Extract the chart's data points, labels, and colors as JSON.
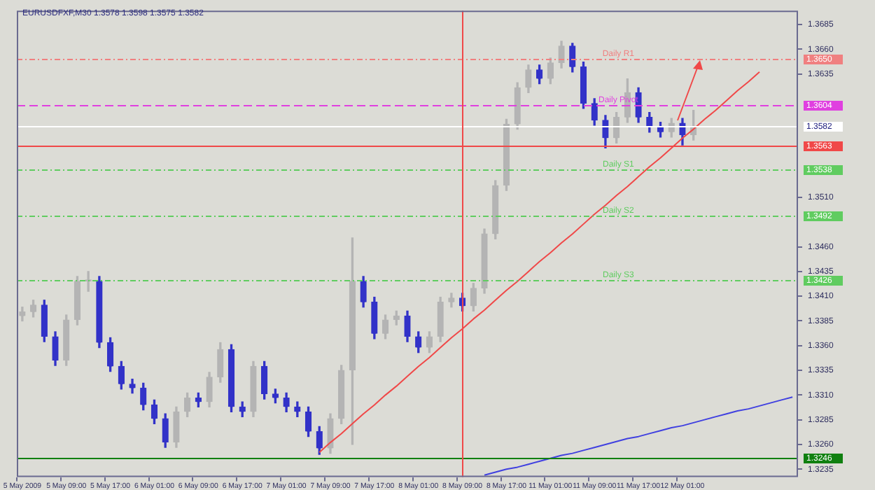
{
  "chart_data": {
    "type": "candlestick",
    "title": "EURUSDFXF,M30 1.3578 1.3598 1.3575 1.3582",
    "marker": "none",
    "categories": [
      "5 May 2009",
      null,
      null,
      null,
      "5 May 09:00",
      null,
      null,
      null,
      "5 May 17:00",
      null,
      null,
      null,
      "6 May 01:00",
      null,
      null,
      null,
      "6 May 09:00",
      null,
      null,
      null,
      "6 May 17:00",
      null,
      null,
      null,
      "7 May 01:00",
      null,
      null,
      null,
      "7 May 09:00",
      null,
      null,
      null,
      "7 May 17:00",
      null,
      null,
      null,
      "8 May 01:00",
      null,
      null,
      null,
      "8 May 09:00",
      null,
      null,
      null,
      "8 May 17:00",
      null,
      null,
      null,
      "11 May 01:00",
      null,
      null,
      null,
      "11 May 09:00",
      null,
      null,
      null,
      "11 May 17:00",
      null,
      null,
      null,
      "12 May 01:00",
      null,
      null,
      null,
      null,
      null,
      null,
      null,
      null,
      null,
      null
    ],
    "ohlc": [
      [
        1.339,
        1.3399,
        1.3385,
        1.3394
      ],
      [
        1.3394,
        1.3406,
        1.3389,
        1.3401
      ],
      [
        1.3401,
        1.3406,
        1.3364,
        1.3369
      ],
      [
        1.3369,
        1.3374,
        1.334,
        1.3345
      ],
      [
        1.3345,
        1.3391,
        1.334,
        1.3386
      ],
      [
        1.3386,
        1.343,
        1.3381,
        1.3425
      ],
      [
        1.3425,
        1.3435,
        1.3415,
        1.3425
      ],
      [
        1.3425,
        1.343,
        1.3358,
        1.3363
      ],
      [
        1.3363,
        1.3368,
        1.3334,
        1.3339
      ],
      [
        1.3339,
        1.3344,
        1.3316,
        1.3321
      ],
      [
        1.3321,
        1.3326,
        1.3312,
        1.3317
      ],
      [
        1.3317,
        1.3322,
        1.3295,
        1.33
      ],
      [
        1.33,
        1.3305,
        1.3281,
        1.3286
      ],
      [
        1.3286,
        1.3291,
        1.3257,
        1.3262
      ],
      [
        1.3262,
        1.3298,
        1.3257,
        1.3293
      ],
      [
        1.3293,
        1.3312,
        1.3288,
        1.3307
      ],
      [
        1.3307,
        1.3312,
        1.3298,
        1.3303
      ],
      [
        1.3303,
        1.3333,
        1.3298,
        1.3328
      ],
      [
        1.3328,
        1.3363,
        1.3323,
        1.3356
      ],
      [
        1.3356,
        1.3361,
        1.3293,
        1.3298
      ],
      [
        1.3298,
        1.3303,
        1.3288,
        1.3293
      ],
      [
        1.3293,
        1.3344,
        1.3288,
        1.3339
      ],
      [
        1.3339,
        1.3344,
        1.3306,
        1.3311
      ],
      [
        1.3311,
        1.3316,
        1.3302,
        1.3307
      ],
      [
        1.3307,
        1.3312,
        1.3293,
        1.3298
      ],
      [
        1.3298,
        1.3303,
        1.3288,
        1.3293
      ],
      [
        1.3293,
        1.3298,
        1.3268,
        1.3273
      ],
      [
        1.3273,
        1.3278,
        1.325,
        1.3256
      ],
      [
        1.3256,
        1.3291,
        1.3251,
        1.3286
      ],
      [
        1.3286,
        1.334,
        1.3281,
        1.3335
      ],
      [
        1.3335,
        1.3469,
        1.326,
        1.3425
      ],
      [
        1.3425,
        1.343,
        1.3399,
        1.3404
      ],
      [
        1.3404,
        1.3409,
        1.3367,
        1.3372
      ],
      [
        1.3372,
        1.3391,
        1.3367,
        1.3386
      ],
      [
        1.3386,
        1.3395,
        1.3381,
        1.339
      ],
      [
        1.339,
        1.3395,
        1.3364,
        1.3369
      ],
      [
        1.3369,
        1.3374,
        1.3353,
        1.3358
      ],
      [
        1.3358,
        1.3374,
        1.3353,
        1.3369
      ],
      [
        1.3369,
        1.3409,
        1.3364,
        1.3404
      ],
      [
        1.3404,
        1.3413,
        1.3399,
        1.3408
      ],
      [
        1.3408,
        1.3413,
        1.3395,
        1.34
      ],
      [
        1.34,
        1.3423,
        1.3395,
        1.3418
      ],
      [
        1.3418,
        1.3478,
        1.3413,
        1.3473
      ],
      [
        1.3473,
        1.3527,
        1.3468,
        1.3522
      ],
      [
        1.3522,
        1.3589,
        1.3517,
        1.3584
      ],
      [
        1.3584,
        1.3626,
        1.3579,
        1.3621
      ],
      [
        1.3621,
        1.3644,
        1.3616,
        1.3639
      ],
      [
        1.3639,
        1.3644,
        1.3625,
        1.363
      ],
      [
        1.363,
        1.3651,
        1.3625,
        1.3646
      ],
      [
        1.3646,
        1.3668,
        1.3641,
        1.3663
      ],
      [
        1.3663,
        1.3666,
        1.3637,
        1.3642
      ],
      [
        1.3642,
        1.3647,
        1.36,
        1.3605
      ],
      [
        1.3605,
        1.361,
        1.3583,
        1.3588
      ],
      [
        1.3588,
        1.3593,
        1.356,
        1.357
      ],
      [
        1.357,
        1.3596,
        1.3565,
        1.3591
      ],
      [
        1.3591,
        1.363,
        1.3586,
        1.3616
      ],
      [
        1.3616,
        1.3621,
        1.3586,
        1.3591
      ],
      [
        1.3591,
        1.3596,
        1.3576,
        1.3581
      ],
      [
        1.3581,
        1.3586,
        1.3571,
        1.3576
      ],
      [
        1.3576,
        1.359,
        1.3571,
        1.3585
      ],
      [
        1.3585,
        1.359,
        1.3563,
        1.3573
      ],
      [
        1.3573,
        1.3598,
        1.3568,
        1.3582
      ],
      null,
      null,
      null,
      null,
      null,
      null,
      null,
      null,
      null
    ],
    "colors": [
      "#b4b4b4",
      "#b4b4b4",
      "#3232c8",
      "#3232c8",
      "#b4b4b4",
      "#b4b4b4",
      "#b4b4b4",
      "#3232c8",
      "#3232c8",
      "#3232c8",
      "#3232c8",
      "#3232c8",
      "#3232c8",
      "#3232c8",
      "#b4b4b4",
      "#b4b4b4",
      "#3232c8",
      "#b4b4b4",
      "#b4b4b4",
      "#3232c8",
      "#3232c8",
      "#b4b4b4",
      "#3232c8",
      "#3232c8",
      "#3232c8",
      "#3232c8",
      "#3232c8",
      "#3232c8",
      "#b4b4b4",
      "#b4b4b4",
      "#b4b4b4",
      "#3232c8",
      "#3232c8",
      "#b4b4b4",
      "#b4b4b4",
      "#3232c8",
      "#3232c8",
      "#b4b4b4",
      "#b4b4b4",
      "#b4b4b4",
      "#3232c8",
      "#b4b4b4",
      "#b4b4b4",
      "#b4b4b4",
      "#b4b4b4",
      "#b4b4b4",
      "#b4b4b4",
      "#3232c8",
      "#b4b4b4",
      "#b4b4b4",
      "#3232c8",
      "#3232c8",
      "#3232c8",
      "#3232c8",
      "#b4b4b4",
      "#b4b4b4",
      "#3232c8",
      "#3232c8",
      "#3232c8",
      "#b4b4b4",
      "#3232c8",
      "#b4b4b4",
      null,
      null,
      null,
      null,
      null,
      null,
      null,
      null,
      null
    ],
    "series": [
      {
        "type": "line",
        "color": "#f04848",
        "values": [
          null,
          null,
          null,
          null,
          null,
          null,
          null,
          null,
          null,
          null,
          null,
          null,
          null,
          null,
          null,
          null,
          null,
          null,
          null,
          null,
          null,
          null,
          null,
          null,
          null,
          null,
          null,
          1.3252,
          1.3262,
          1.3271,
          1.3281,
          1.3291,
          1.33,
          1.331,
          1.3319,
          1.3329,
          1.3339,
          1.3348,
          1.3358,
          1.3368,
          1.3377,
          1.3387,
          1.3396,
          1.3406,
          1.3416,
          1.3425,
          1.3435,
          1.3445,
          1.3454,
          1.3464,
          1.3473,
          1.3483,
          1.3493,
          1.3502,
          1.3512,
          1.3521,
          1.3531,
          1.3541,
          1.355,
          1.356,
          1.357,
          1.3579,
          1.3589,
          1.3598,
          1.3608,
          1.3618,
          1.3627,
          1.3637,
          null,
          null,
          null
        ]
      },
      {
        "type": "line",
        "color": "#4040e0",
        "values": [
          null,
          null,
          null,
          null,
          null,
          null,
          null,
          null,
          null,
          null,
          null,
          null,
          null,
          null,
          null,
          null,
          null,
          null,
          null,
          null,
          null,
          null,
          null,
          null,
          null,
          null,
          null,
          null,
          null,
          null,
          null,
          null,
          null,
          null,
          null,
          null,
          null,
          null,
          null,
          null,
          null,
          null,
          1.3229,
          1.3232,
          1.3235,
          1.3237,
          1.324,
          1.3243,
          1.3246,
          1.3249,
          1.3251,
          1.3254,
          1.3257,
          1.326,
          1.3263,
          1.3266,
          1.3268,
          1.3271,
          1.3274,
          1.3277,
          1.3279,
          1.3282,
          1.3285,
          1.3288,
          1.3291,
          1.3294,
          1.3296,
          1.3299,
          1.3302,
          1.3305,
          1.3308
        ]
      }
    ],
    "ylim": [
      1.3227,
      1.3699
    ],
    "yticks": [
      {
        "value": 1.3685,
        "label": "1.3685"
      },
      {
        "value": 1.366,
        "label": "1.3660"
      },
      {
        "value": 1.3635,
        "label": "1.3635"
      },
      {
        "value": 1.351,
        "label": "1.3510"
      },
      {
        "value": 1.346,
        "label": "1.3460"
      },
      {
        "value": 1.3435,
        "label": "1.3435"
      },
      {
        "value": 1.341,
        "label": "1.3410"
      },
      {
        "value": 1.3385,
        "label": "1.3385"
      },
      {
        "value": 1.336,
        "label": "1.3360"
      },
      {
        "value": 1.3335,
        "label": "1.3335"
      },
      {
        "value": 1.331,
        "label": "1.3310"
      },
      {
        "value": 1.3285,
        "label": "1.3285"
      },
      {
        "value": 1.326,
        "label": "1.3260"
      },
      {
        "value": 1.3235,
        "label": "1.3235"
      }
    ],
    "ref_lines": [
      {
        "axis": "y",
        "value": 1.365,
        "label": "Daily R1",
        "color": "#f08080",
        "line_style": "dotted"
      },
      {
        "axis": "y",
        "value": 1.3604,
        "label": "Daily Pivot",
        "color": "#e040e0",
        "line_style": "dashed"
      },
      {
        "axis": "y",
        "value": 1.3582,
        "color": "#ffffff",
        "line_style": "solid"
      },
      {
        "axis": "y",
        "value": 1.3563,
        "color": "#f04848",
        "line_style": "solid"
      },
      {
        "axis": "y",
        "value": 1.3538,
        "label": "Daily S1",
        "color": "#60cc60",
        "line_style": "dotted"
      },
      {
        "axis": "y",
        "value": 1.3492,
        "label": "Daily S2",
        "color": "#60cc60",
        "line_style": "dotted"
      },
      {
        "axis": "y",
        "value": 1.3426,
        "label": "Daily S3",
        "color": "#60cc60",
        "line_style": "dotted"
      },
      {
        "axis": "y",
        "value": 1.3246,
        "color": "#108010",
        "line_style": "solid"
      },
      {
        "axis": "x",
        "value": "8 May 09:00",
        "color": "#f04848",
        "line_style": "solid"
      }
    ],
    "annotations": [
      "1.3650",
      "1.3604",
      "1.3582",
      "1.3563",
      "1.3538",
      "1.3492",
      "1.3426",
      "1.3246"
    ]
  }
}
